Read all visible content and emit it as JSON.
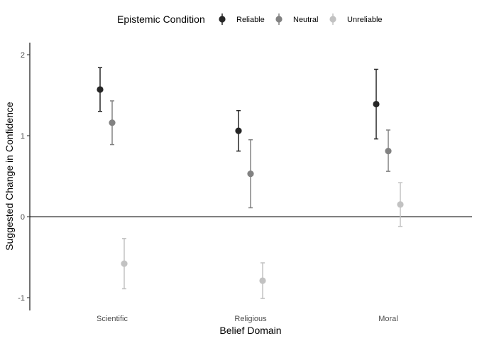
{
  "chart_data": {
    "type": "scatter",
    "subtype": "pointrange",
    "xlabel": "Belief Domain",
    "ylabel": "Suggested Change in Confidence",
    "categories": [
      "Scientific",
      "Religious",
      "Moral"
    ],
    "ylim": [
      -1.15,
      2.15
    ],
    "yticks": [
      "-1",
      "0",
      "1",
      "2"
    ],
    "zero_line": true,
    "grid": false,
    "legend": {
      "title": "Epistemic Condition",
      "position": "top"
    },
    "series": [
      {
        "name": "Reliable",
        "color": "#262626",
        "values": [
          1.57,
          1.06,
          1.39
        ],
        "lower": [
          1.3,
          0.81,
          0.96
        ],
        "upper": [
          1.84,
          1.31,
          1.82
        ]
      },
      {
        "name": "Neutral",
        "color": "#828282",
        "values": [
          1.16,
          0.53,
          0.81
        ],
        "lower": [
          0.89,
          0.11,
          0.56
        ],
        "upper": [
          1.43,
          0.95,
          1.07
        ]
      },
      {
        "name": "Unreliable",
        "color": "#c2c2c2",
        "values": [
          -0.58,
          -0.79,
          0.15
        ],
        "lower": [
          -0.89,
          -1.01,
          -0.12
        ],
        "upper": [
          -0.27,
          -0.57,
          0.42
        ]
      }
    ]
  }
}
